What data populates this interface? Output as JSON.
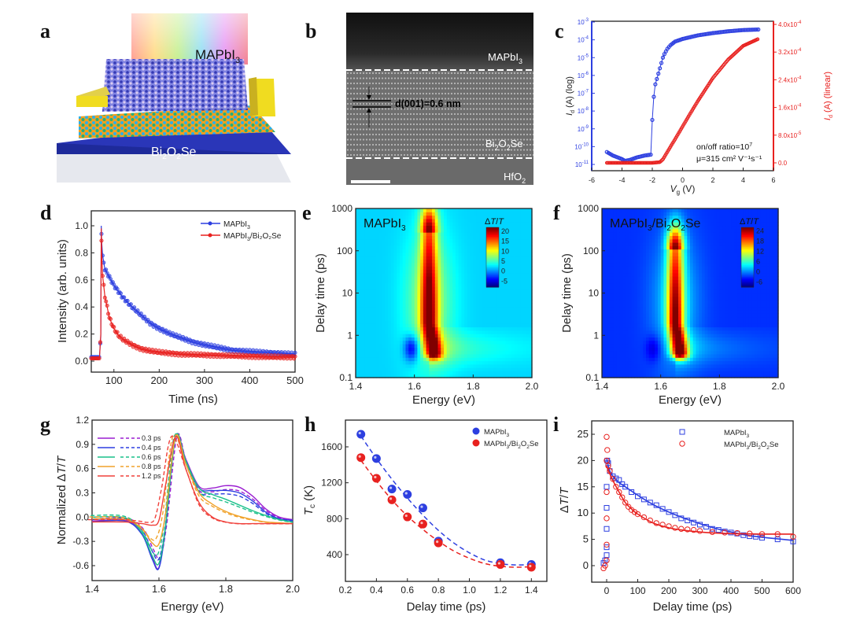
{
  "figure": {
    "panels": [
      "a",
      "b",
      "c",
      "d",
      "e",
      "f",
      "g",
      "h",
      "i"
    ]
  },
  "panel_a": {
    "letter": "a",
    "top_label": "MAPbI",
    "top_label_sub": "3",
    "substrate_label_parts": [
      "Bi",
      "2",
      "O",
      "2",
      "Se"
    ],
    "description": "3D schematic of MAPbI3 layer on Bi2O2Se with gold electrodes under rainbow illumination"
  },
  "panel_b": {
    "letter": "b",
    "layer_top": "MAPbI",
    "layer_top_sub": "3",
    "layer_mid_parts": [
      "Bi",
      "2",
      "O",
      "2",
      "Se"
    ],
    "layer_bottom": "HfO",
    "layer_bottom_sub": "2",
    "spacing_label": "d(001)=0.6 nm"
  },
  "chart_data": [
    {
      "id": "c",
      "type": "scatter",
      "title": "",
      "xlabel": "V_g (V)",
      "ylabel_left": "I_d (A) (log)",
      "ylabel_right": "I_d (A) (linear)",
      "xlim": [
        -6,
        6
      ],
      "xticks": [
        "-6",
        "-4",
        "-2",
        "0",
        "2",
        "4",
        "6"
      ],
      "ylim_left_log10": [
        -11.3,
        -3
      ],
      "yticks_left": [
        "10-3",
        "10-4",
        "10-5",
        "10-6",
        "10-7",
        "10-8",
        "10-9",
        "10-10",
        "10-11"
      ],
      "ylim_right": [
        -2.5e-05,
        0.00041
      ],
      "yticks_right": [
        "4.0x10-4",
        "3.2x10-4",
        "2.4x10-4",
        "1.6x10-4",
        "8.0x10-5",
        "0.0"
      ],
      "annotation_1": "on/off ratio=10",
      "annotation_1_sup": "7",
      "annotation_2": "μ=315 cm² V⁻¹s⁻¹",
      "colors": {
        "log": "#2d3fe0",
        "linear": "#e8211f"
      },
      "series": [
        {
          "name": "log",
          "axis": "left",
          "x": [
            -5.0,
            -4.6,
            -4.3,
            -4.0,
            -3.8,
            -3.5,
            -3.0,
            -2.5,
            -2.1,
            -2.05,
            -2.0,
            -1.9,
            -1.8,
            -1.7,
            -1.6,
            -1.5,
            -1.4,
            -1.3,
            -1.2,
            -1.0,
            -0.8,
            -0.5,
            0,
            1,
            2,
            3,
            4,
            5
          ],
          "log10y": [
            -10.3,
            -10.5,
            -10.6,
            -10.7,
            -10.8,
            -10.75,
            -10.6,
            -10.5,
            -10.45,
            -9.8,
            -8.5,
            -7.2,
            -6.5,
            -6.2,
            -5.9,
            -5.6,
            -5.3,
            -5.0,
            -4.8,
            -4.5,
            -4.3,
            -4.1,
            -3.95,
            -3.75,
            -3.62,
            -3.52,
            -3.45,
            -3.42
          ]
        },
        {
          "name": "linear",
          "axis": "right",
          "x": [
            -5,
            -4,
            -3,
            -2,
            -1.5,
            -1.3,
            -1.0,
            -0.5,
            0,
            0.5,
            1,
            2,
            3,
            4,
            5
          ],
          "y": [
            0,
            0,
            0,
            0,
            2e-06,
            1e-05,
            3.2e-05,
            6.8e-05,
            0.000105,
            0.000142,
            0.000178,
            0.000245,
            0.000298,
            0.000338,
            0.000358
          ]
        }
      ]
    },
    {
      "id": "d",
      "type": "scatter",
      "title": "",
      "xlabel": "Time (ns)",
      "ylabel": "Intensity (arb. units)",
      "xlim": [
        50,
        500
      ],
      "ylim": [
        -0.1,
        1.1
      ],
      "xticks": [
        "100",
        "200",
        "300",
        "400",
        "500"
      ],
      "yticks": [
        "0.0",
        "0.2",
        "0.4",
        "0.6",
        "0.8",
        "1.0"
      ],
      "legend_position": "top-right",
      "series": [
        {
          "name": "MAPbI3",
          "label": "MAPbI",
          "label_sub": "3",
          "color": "#2d3fe0",
          "x": [
            50,
            60,
            68,
            71,
            72,
            73,
            75,
            80,
            90,
            100,
            120,
            140,
            160,
            180,
            200,
            225,
            250,
            275,
            300,
            330,
            360,
            400,
            450,
            500
          ],
          "y": [
            0.03,
            0.03,
            0.03,
            0.18,
            1.0,
            0.88,
            0.78,
            0.68,
            0.62,
            0.56,
            0.47,
            0.4,
            0.34,
            0.28,
            0.24,
            0.2,
            0.17,
            0.14,
            0.12,
            0.1,
            0.08,
            0.07,
            0.06,
            0.05
          ]
        },
        {
          "name": "MAPbI3/Bi2O2Se",
          "label": "MAPbI3/Bi2O2Se",
          "color": "#e8211f",
          "x": [
            50,
            60,
            68,
            71,
            72,
            73,
            75,
            80,
            90,
            100,
            110,
            120,
            140,
            160,
            180,
            200,
            250,
            300,
            350,
            400,
            450,
            500
          ],
          "y": [
            0.02,
            0.02,
            0.02,
            0.2,
            0.98,
            0.8,
            0.63,
            0.48,
            0.32,
            0.24,
            0.19,
            0.16,
            0.12,
            0.09,
            0.075,
            0.065,
            0.05,
            0.045,
            0.04,
            0.035,
            0.03,
            0.03
          ]
        }
      ]
    },
    {
      "id": "e",
      "type": "heatmap",
      "label": "MAPbI3",
      "label_main": "MAPbI",
      "label_sub": "3",
      "xlabel": "Energy (eV)",
      "ylabel": "Delay time (ps)",
      "xlim": [
        1.4,
        2.0
      ],
      "ylim_log": [
        0.1,
        1000
      ],
      "xticks": [
        "1.4",
        "1.6",
        "1.8",
        "2.0"
      ],
      "yticks": [
        "0.1",
        "1",
        "10",
        "100",
        "1000"
      ],
      "colorbar_title": "ΔT/T",
      "colorbar_ticks": [
        "20",
        "15",
        "10",
        "5",
        "0",
        "-5"
      ],
      "colorbar_range": [
        -8,
        22
      ],
      "background_value": 2,
      "features": [
        {
          "type": "positive_peak",
          "energy": 1.65,
          "delay_range_ps": [
            0.4,
            300
          ],
          "max": 21
        },
        {
          "type": "negative_dip",
          "energy": 1.59,
          "delay_ps": 0.5,
          "min": -6
        }
      ]
    },
    {
      "id": "f",
      "type": "heatmap",
      "label": "MAPbI3/Bi2O2Se",
      "xlabel": "Energy (eV)",
      "ylabel": "Delay time (ps)",
      "xlim": [
        1.4,
        2.0
      ],
      "ylim_log": [
        0.1,
        1000
      ],
      "xticks": [
        "1.4",
        "1.6",
        "1.8",
        "2.0"
      ],
      "yticks": [
        "0.1",
        "1",
        "10",
        "100",
        "1000"
      ],
      "colorbar_title": "ΔT/T",
      "colorbar_ticks": [
        "24",
        "18",
        "12",
        "6",
        "0",
        "-6"
      ],
      "colorbar_range": [
        -9,
        26
      ],
      "background_value": -3,
      "features": [
        {
          "type": "positive_peak",
          "energy": 1.65,
          "delay_range_ps": [
            0.4,
            100
          ],
          "max": 25
        },
        {
          "type": "negative_dip",
          "energy": 1.575,
          "delay_ps": 0.5,
          "min": -7
        }
      ]
    },
    {
      "id": "g",
      "type": "line",
      "xlabel": "Energy (eV)",
      "ylabel": "Normalized ΔT/T",
      "xlim": [
        1.4,
        2.0
      ],
      "ylim": [
        -0.8,
        1.2
      ],
      "xticks": [
        "1.4",
        "1.6",
        "1.8",
        "2.0"
      ],
      "yticks": [
        "1.2",
        "0.9",
        "0.6",
        "0.3",
        "0.0",
        "-0.3",
        "-0.6"
      ],
      "legend_position": "top-left",
      "legend_note": "solid = MAPbI3 fit, dashed = MAPbI3/Bi2O2Se",
      "series": [
        {
          "name": "0.3 ps",
          "color": "#9b1fd1",
          "x": [
            1.4,
            1.5,
            1.55,
            1.58,
            1.6,
            1.62,
            1.65,
            1.68,
            1.72,
            1.76,
            1.8,
            1.84,
            1.88,
            1.92,
            1.96,
            2.0
          ],
          "y": [
            -0.05,
            -0.04,
            -0.2,
            -0.5,
            -0.62,
            -0.1,
            1.0,
            0.72,
            0.38,
            0.36,
            0.39,
            0.37,
            0.26,
            0.1,
            0.0,
            -0.03
          ]
        },
        {
          "name": "0.4 ps",
          "color": "#2d3fe0",
          "x": [
            1.4,
            1.5,
            1.55,
            1.58,
            1.6,
            1.62,
            1.65,
            1.68,
            1.72,
            1.76,
            1.8,
            1.84,
            1.88,
            1.92,
            1.96,
            2.0
          ],
          "y": [
            -0.06,
            -0.05,
            -0.22,
            -0.52,
            -0.63,
            -0.12,
            1.0,
            0.7,
            0.36,
            0.33,
            0.33,
            0.3,
            0.2,
            0.06,
            -0.02,
            -0.04
          ]
        },
        {
          "name": "0.6 ps",
          "color": "#19c08a",
          "x": [
            1.4,
            1.5,
            1.55,
            1.58,
            1.6,
            1.62,
            1.65,
            1.68,
            1.72,
            1.76,
            1.8,
            1.84,
            1.88,
            1.92,
            1.96,
            2.0
          ],
          "y": [
            0.0,
            -0.01,
            -0.2,
            -0.48,
            -0.57,
            -0.1,
            1.0,
            0.7,
            0.36,
            0.28,
            0.22,
            0.15,
            0.08,
            0.02,
            -0.03,
            -0.06
          ]
        },
        {
          "name": "0.8 ps",
          "color": "#f0a22a",
          "x": [
            1.4,
            1.5,
            1.55,
            1.58,
            1.6,
            1.62,
            1.65,
            1.68,
            1.72,
            1.76,
            1.8,
            1.84,
            1.88,
            1.92,
            1.96,
            2.0
          ],
          "y": [
            -0.02,
            -0.03,
            -0.15,
            -0.32,
            -0.33,
            0.05,
            1.0,
            0.66,
            0.3,
            0.16,
            0.07,
            0.01,
            -0.03,
            -0.06,
            -0.07,
            -0.08
          ]
        },
        {
          "name": "1.2 ps",
          "color": "#f0403a",
          "x": [
            1.4,
            1.5,
            1.55,
            1.58,
            1.6,
            1.62,
            1.65,
            1.68,
            1.72,
            1.76,
            1.8,
            1.84,
            1.88,
            1.92,
            1.96,
            2.0
          ],
          "y": [
            -0.06,
            -0.06,
            -0.08,
            -0.1,
            -0.04,
            0.4,
            1.0,
            0.6,
            0.18,
            0.0,
            -0.06,
            -0.08,
            -0.08,
            -0.08,
            -0.08,
            -0.08
          ]
        }
      ]
    },
    {
      "id": "h",
      "type": "scatter",
      "xlabel": "Delay time (ps)",
      "ylabel": "T_c (K)",
      "xlim": [
        0.2,
        1.5
      ],
      "ylim": [
        100,
        1900
      ],
      "xticks": [
        "0.2",
        "0.4",
        "0.6",
        "0.8",
        "1.0",
        "1.2",
        "1.4"
      ],
      "yticks": [
        "400",
        "800",
        "1200",
        "1600"
      ],
      "legend_position": "top-right",
      "series": [
        {
          "name": "MAPbI3",
          "color": "#2d3fe0",
          "x": [
            0.3,
            0.4,
            0.5,
            0.6,
            0.7,
            0.8,
            1.2,
            1.4
          ],
          "y": [
            1740,
            1470,
            1130,
            1070,
            920,
            550,
            310,
            290
          ],
          "fit_x": [
            0.3,
            0.4,
            0.5,
            0.6,
            0.7,
            0.8,
            0.9,
            1.0,
            1.1,
            1.2,
            1.3,
            1.4
          ],
          "fit_y": [
            1720,
            1470,
            1240,
            1030,
            840,
            670,
            530,
            420,
            340,
            300,
            285,
            290
          ]
        },
        {
          "name": "MAPbI3/Bi2O2Se",
          "color": "#e8211f",
          "x": [
            0.3,
            0.4,
            0.5,
            0.6,
            0.7,
            0.8,
            1.2,
            1.4
          ],
          "y": [
            1480,
            1250,
            1010,
            820,
            740,
            530,
            290,
            260
          ],
          "fit_x": [
            0.3,
            0.4,
            0.5,
            0.6,
            0.7,
            0.8,
            0.9,
            1.0,
            1.1,
            1.2,
            1.3,
            1.4
          ],
          "fit_y": [
            1450,
            1220,
            1010,
            830,
            680,
            550,
            440,
            360,
            300,
            270,
            260,
            265
          ]
        }
      ]
    },
    {
      "id": "i",
      "type": "scatter",
      "xlabel": "Delay time (ps)",
      "ylabel": "ΔT/T",
      "xlim": [
        -50,
        600
      ],
      "ylim": [
        -3,
        27.5
      ],
      "xticks": [
        "0",
        "100",
        "200",
        "300",
        "400",
        "500",
        "600"
      ],
      "yticks": [
        "0",
        "5",
        "10",
        "15",
        "20",
        "25"
      ],
      "legend_position": "top-right",
      "series": [
        {
          "name": "MAPbI3",
          "marker": "square",
          "color": "#2d3fe0",
          "x": [
            -10,
            -5,
            0,
            0,
            0,
            0,
            0,
            2,
            5,
            10,
            20,
            30,
            40,
            50,
            60,
            80,
            100,
            120,
            140,
            160,
            180,
            200,
            220,
            240,
            260,
            280,
            300,
            320,
            340,
            360,
            380,
            400,
            420,
            440,
            460,
            480,
            500,
            550,
            600
          ],
          "y": [
            0.5,
            1,
            2,
            3.5,
            7,
            11,
            15,
            20,
            19.5,
            18,
            17,
            16.6,
            16.3,
            15.5,
            15,
            14,
            13.2,
            12.6,
            12,
            11.5,
            10.8,
            10.2,
            9.6,
            9,
            8.6,
            8.2,
            7.8,
            7.4,
            7,
            6.8,
            6.5,
            6.3,
            6.1,
            5.8,
            5.6,
            5.5,
            5.3,
            5,
            4.6
          ],
          "fit_x": [
            0,
            5,
            10,
            20,
            40,
            60,
            100,
            150,
            200,
            250,
            300,
            350,
            400,
            450,
            500,
            550,
            600
          ],
          "fit_y": [
            20.5,
            19,
            18,
            17,
            15.8,
            15,
            13.4,
            11.6,
            10.2,
            9,
            8,
            7.1,
            6.4,
            5.8,
            5.4,
            5.1,
            4.8
          ]
        },
        {
          "name": "MAPbI3/Bi2O2Se",
          "marker": "circle",
          "color": "#e8211f",
          "x": [
            -10,
            -5,
            0,
            0,
            0,
            0,
            0,
            0,
            2,
            5,
            10,
            20,
            30,
            40,
            50,
            60,
            70,
            80,
            90,
            100,
            120,
            140,
            160,
            180,
            200,
            220,
            240,
            260,
            280,
            300,
            340,
            380,
            420,
            460,
            500,
            550,
            600
          ],
          "y": [
            -0.5,
            0,
            1,
            4,
            9,
            14,
            20,
            24.5,
            22,
            19,
            18,
            16.5,
            15,
            14,
            13,
            12,
            11.2,
            10.6,
            10.2,
            9.8,
            9.2,
            8.6,
            8.1,
            7.8,
            7.5,
            7.2,
            7,
            6.9,
            6.8,
            6.6,
            6.4,
            6.3,
            6.2,
            6.1,
            6,
            6,
            5.5
          ],
          "fit_x": [
            0,
            5,
            10,
            20,
            40,
            60,
            80,
            100,
            150,
            200,
            250,
            300,
            350,
            400,
            450,
            500,
            550,
            600
          ],
          "fit_y": [
            19,
            18.2,
            17.5,
            16.2,
            14,
            12,
            10.8,
            9.8,
            8.1,
            7.2,
            6.7,
            6.4,
            6.2,
            6.1,
            6.05,
            6.0,
            6.0,
            6.0
          ]
        }
      ]
    }
  ]
}
